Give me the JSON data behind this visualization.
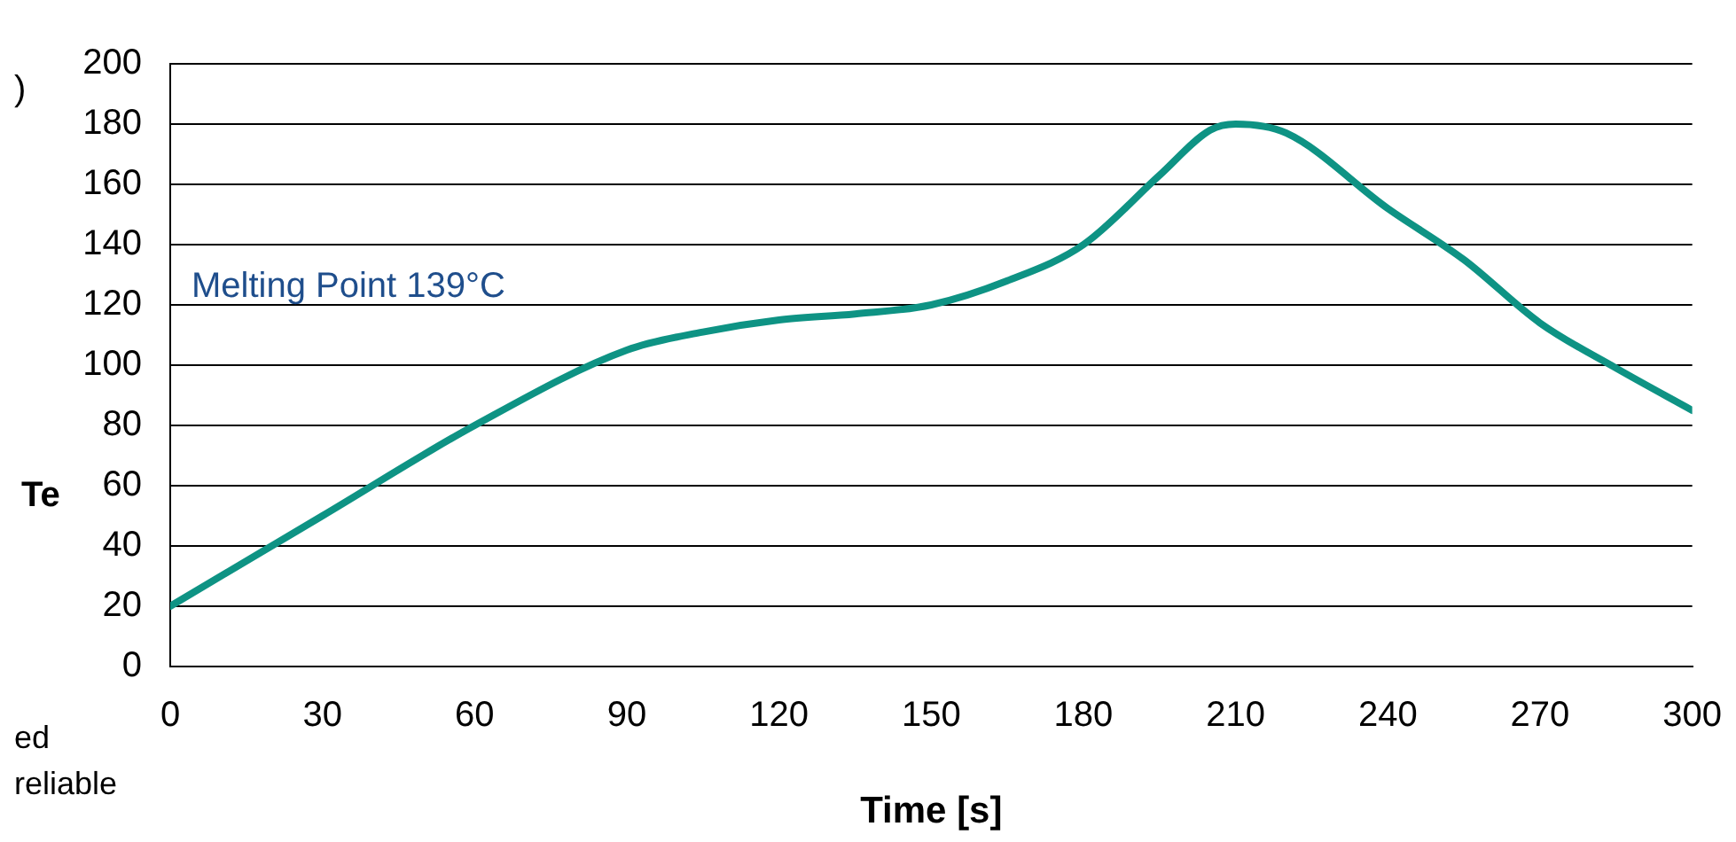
{
  "chart_data": {
    "type": "line",
    "xlabel": "Time [s]",
    "ylabel": "Te",
    "x": [
      0,
      30,
      60,
      90,
      105,
      120,
      135,
      150,
      165,
      180,
      195,
      205,
      210,
      220,
      240,
      255,
      270,
      285,
      300
    ],
    "series": [
      {
        "color": "#0e9384",
        "values": [
          20,
          50,
          80,
          105,
          111,
          115,
          117,
          120,
          128,
          140,
          163,
          178,
          180,
          177,
          152,
          135,
          114,
          99,
          85
        ]
      }
    ],
    "xlim": [
      0,
      300
    ],
    "xticks": [
      0,
      30,
      60,
      90,
      120,
      150,
      180,
      210,
      240,
      270,
      300
    ],
    "ylim": [
      0,
      200
    ],
    "yticks": [
      0,
      20,
      40,
      60,
      80,
      100,
      120,
      140,
      160,
      180,
      200
    ],
    "grid": "y",
    "legend": false,
    "marker": "none",
    "line_style": "solid",
    "annotations": [
      "Melting Point 139°C",
      ")",
      "ed",
      "reliable"
    ]
  }
}
